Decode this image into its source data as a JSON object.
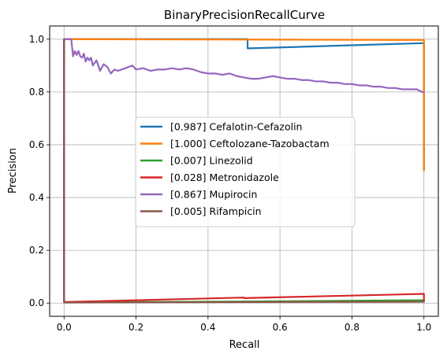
{
  "chart_data": {
    "type": "line",
    "title": "BinaryPrecisionRecallCurve",
    "xlabel": "Recall",
    "ylabel": "Precision",
    "xlim": [
      -0.04,
      1.04
    ],
    "ylim": [
      -0.05,
      1.05
    ],
    "xticks": [
      "0.0",
      "0.2",
      "0.4",
      "0.6",
      "0.8",
      "1.0"
    ],
    "yticks": [
      "0.0",
      "0.2",
      "0.4",
      "0.6",
      "0.8",
      "1.0"
    ],
    "grid": true,
    "legend_position": "center",
    "series": [
      {
        "name": "[0.987] Cefalotin-Cefazolin",
        "color": "#1f77b4",
        "x": [
          0.0,
          0.0,
          0.51,
          0.51,
          1.0,
          1.0
        ],
        "y": [
          0.003,
          1.0,
          1.0,
          0.965,
          0.985,
          0.5
        ]
      },
      {
        "name": "[1.000] Ceftolozane-Tazobactam",
        "color": "#ff7f0e",
        "x": [
          0.0,
          0.0,
          1.0,
          1.0
        ],
        "y": [
          0.003,
          1.0,
          0.997,
          0.5
        ]
      },
      {
        "name": "[0.007] Linezolid",
        "color": "#2ca02c",
        "x": [
          0.0,
          0.0,
          0.5,
          1.0,
          1.0
        ],
        "y": [
          1.0,
          0.003,
          0.006,
          0.011,
          0.005
        ]
      },
      {
        "name": "[0.028] Metronidazole",
        "color": "#d62728",
        "x": [
          0.0,
          0.0,
          0.5,
          0.5,
          1.0,
          1.0
        ],
        "y": [
          1.0,
          0.004,
          0.021,
          0.019,
          0.035,
          0.005
        ]
      },
      {
        "name": "[0.867] Mupirocin",
        "color": "#9467bd",
        "x": [
          0.0,
          0.0,
          0.02,
          0.025,
          0.03,
          0.035,
          0.04,
          0.045,
          0.05,
          0.055,
          0.06,
          0.065,
          0.07,
          0.075,
          0.08,
          0.09,
          0.1,
          0.11,
          0.12,
          0.13,
          0.14,
          0.15,
          0.17,
          0.19,
          0.2,
          0.22,
          0.24,
          0.26,
          0.28,
          0.3,
          0.32,
          0.34,
          0.36,
          0.38,
          0.4,
          0.42,
          0.44,
          0.46,
          0.48,
          0.5,
          0.52,
          0.54,
          0.56,
          0.58,
          0.6,
          0.62,
          0.64,
          0.66,
          0.68,
          0.7,
          0.72,
          0.74,
          0.76,
          0.78,
          0.8,
          0.82,
          0.84,
          0.86,
          0.88,
          0.9,
          0.92,
          0.94,
          0.96,
          0.98,
          0.995,
          1.0
        ],
        "y": [
          0.003,
          1.0,
          1.0,
          0.935,
          0.955,
          0.94,
          0.955,
          0.935,
          0.93,
          0.945,
          0.915,
          0.93,
          0.92,
          0.93,
          0.9,
          0.92,
          0.88,
          0.905,
          0.895,
          0.87,
          0.885,
          0.88,
          0.89,
          0.9,
          0.885,
          0.89,
          0.88,
          0.885,
          0.885,
          0.89,
          0.885,
          0.89,
          0.885,
          0.875,
          0.87,
          0.87,
          0.865,
          0.87,
          0.86,
          0.855,
          0.85,
          0.85,
          0.855,
          0.86,
          0.855,
          0.85,
          0.85,
          0.845,
          0.845,
          0.84,
          0.84,
          0.835,
          0.835,
          0.83,
          0.83,
          0.825,
          0.825,
          0.82,
          0.82,
          0.815,
          0.815,
          0.81,
          0.81,
          0.81,
          0.8,
          0.8
        ]
      },
      {
        "name": "[0.005] Rifampicin",
        "color": "#8c564b",
        "x": [
          0.0,
          0.0,
          0.5,
          1.0,
          1.0
        ],
        "y": [
          1.0,
          0.002,
          0.004,
          0.005,
          0.003
        ]
      }
    ]
  }
}
